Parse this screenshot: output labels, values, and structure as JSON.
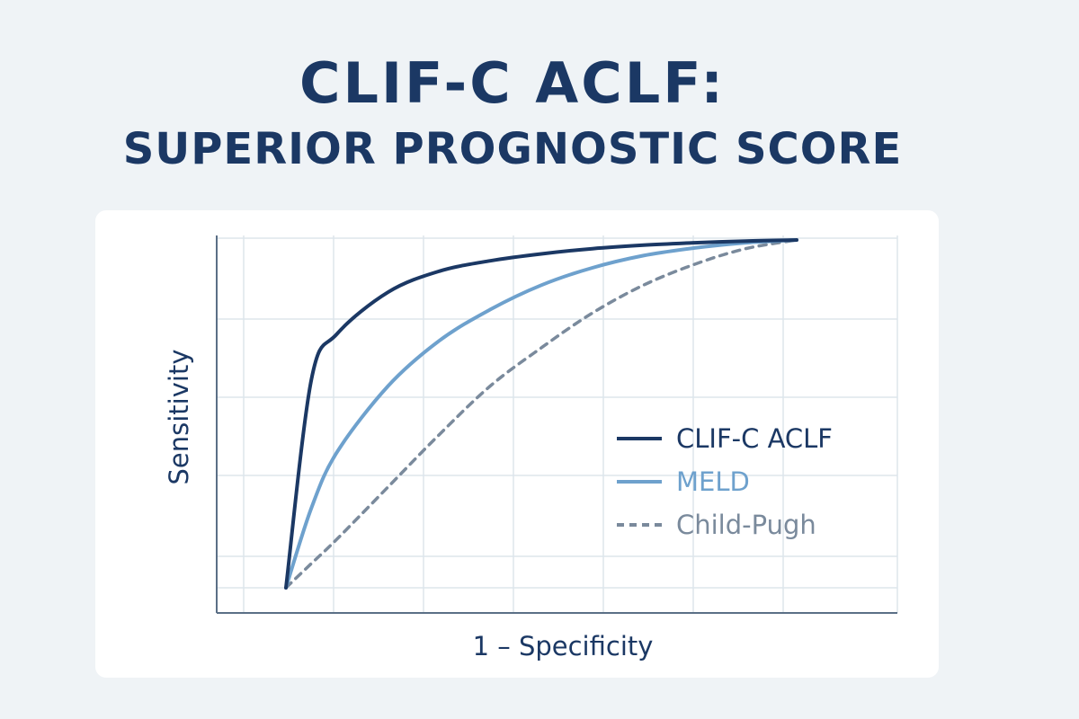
{
  "title_line1": "CLIF-C ACLF:",
  "title_line2": "SUPERIOR PROGNOSTIC SCORE",
  "colors": {
    "background": "#eff3f6",
    "card": "#ffffff",
    "grid": "#dde5ec",
    "axis": "#5b6f86",
    "title": "#1b3864"
  },
  "chart_data": {
    "type": "line",
    "xlabel": "1 – Specificity",
    "ylabel": "Sensitivity",
    "xlim": [
      0,
      1
    ],
    "ylim": [
      0,
      1
    ],
    "grid": true,
    "legend_position": "right",
    "series": [
      {
        "name": "CLIF-C ACLF",
        "color": "#1b3864",
        "style": "solid",
        "x": [
          0,
          0.05,
          0.1,
          0.2,
          0.3,
          0.4,
          0.5,
          0.6,
          0.7,
          0.8,
          0.9,
          1.0
        ],
        "y": [
          0,
          0.6,
          0.73,
          0.85,
          0.91,
          0.94,
          0.96,
          0.975,
          0.985,
          0.992,
          0.997,
          1.0
        ]
      },
      {
        "name": "MELD",
        "color": "#6ea1cd",
        "style": "solid",
        "x": [
          0,
          0.05,
          0.1,
          0.2,
          0.3,
          0.4,
          0.5,
          0.6,
          0.7,
          0.8,
          0.9,
          1.0
        ],
        "y": [
          0,
          0.23,
          0.39,
          0.58,
          0.71,
          0.8,
          0.87,
          0.92,
          0.955,
          0.977,
          0.992,
          1.0
        ]
      },
      {
        "name": "Child-Pugh",
        "color": "#7a8a9c",
        "style": "dashed",
        "x": [
          0,
          0.05,
          0.1,
          0.2,
          0.3,
          0.4,
          0.5,
          0.6,
          0.7,
          0.8,
          0.9,
          1.0
        ],
        "y": [
          0,
          0.07,
          0.14,
          0.29,
          0.44,
          0.58,
          0.69,
          0.79,
          0.87,
          0.93,
          0.975,
          1.0
        ]
      }
    ]
  }
}
